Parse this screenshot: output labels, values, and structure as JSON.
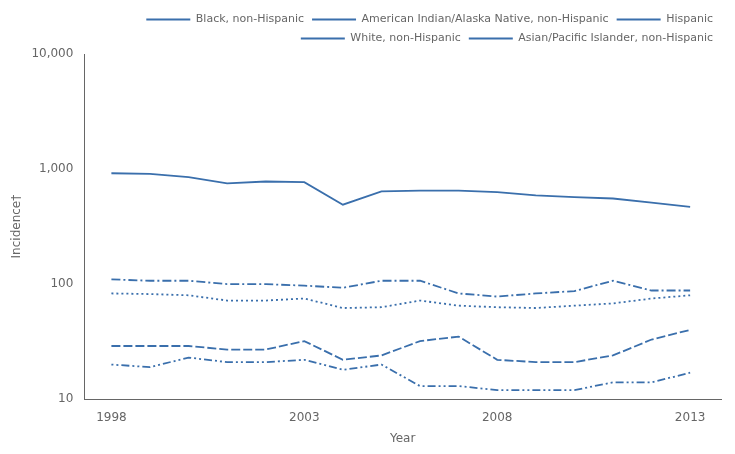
{
  "chart_data": {
    "type": "line",
    "x": [
      1998,
      1999,
      2000,
      2001,
      2002,
      2003,
      2004,
      2005,
      2006,
      2007,
      2008,
      2009,
      2010,
      2011,
      2012,
      2013
    ],
    "series": [
      {
        "name": "Black, non-Hispanic",
        "color": "#3a6fac",
        "line_style": "solid",
        "values": [
          920,
          910,
          850,
          750,
          780,
          770,
          490,
          640,
          650,
          650,
          630,
          590,
          570,
          555,
          510,
          470
        ]
      },
      {
        "name": "American Indian/Alaska Native, non-Hispanic",
        "color": "#3a6fac",
        "line_style": "dashdot",
        "values": [
          110,
          107,
          107,
          100,
          100,
          97,
          93,
          107,
          107,
          83,
          78,
          83,
          87,
          107,
          88,
          88
        ]
      },
      {
        "name": "Hispanic",
        "color": "#3a6fac",
        "line_style": "dotted",
        "values": [
          83,
          82,
          80,
          72,
          72,
          75,
          62,
          63,
          72,
          65,
          63,
          62,
          65,
          68,
          75,
          80
        ]
      },
      {
        "name": "White, non-Hispanic",
        "color": "#3a6fac",
        "line_style": "dashed",
        "values": [
          29,
          29,
          29,
          27,
          27,
          32,
          22,
          24,
          32,
          35,
          22,
          21,
          21,
          24,
          33,
          40
        ]
      },
      {
        "name": "Asian/Pacific Islander, non-Hispanic",
        "color": "#3a6fac",
        "line_style": "dashdotdot",
        "values": [
          20,
          19,
          23,
          21,
          21,
          22,
          18,
          20,
          13,
          13,
          12,
          12,
          12,
          14,
          14,
          17
        ]
      }
    ],
    "xlabel": "Year",
    "ylabel": "Incidence†",
    "log": "y",
    "xlim": [
      1997.3,
      2013.8
    ],
    "xticks": [
      1998,
      2003,
      2008,
      2013
    ],
    "ylim": [
      10,
      10000
    ],
    "yticks": [
      10,
      100,
      {
        "value": 1000,
        "label": "1,000"
      },
      {
        "value": 10000,
        "label": "10,000"
      }
    ],
    "grid": false,
    "legend": "upper right"
  }
}
